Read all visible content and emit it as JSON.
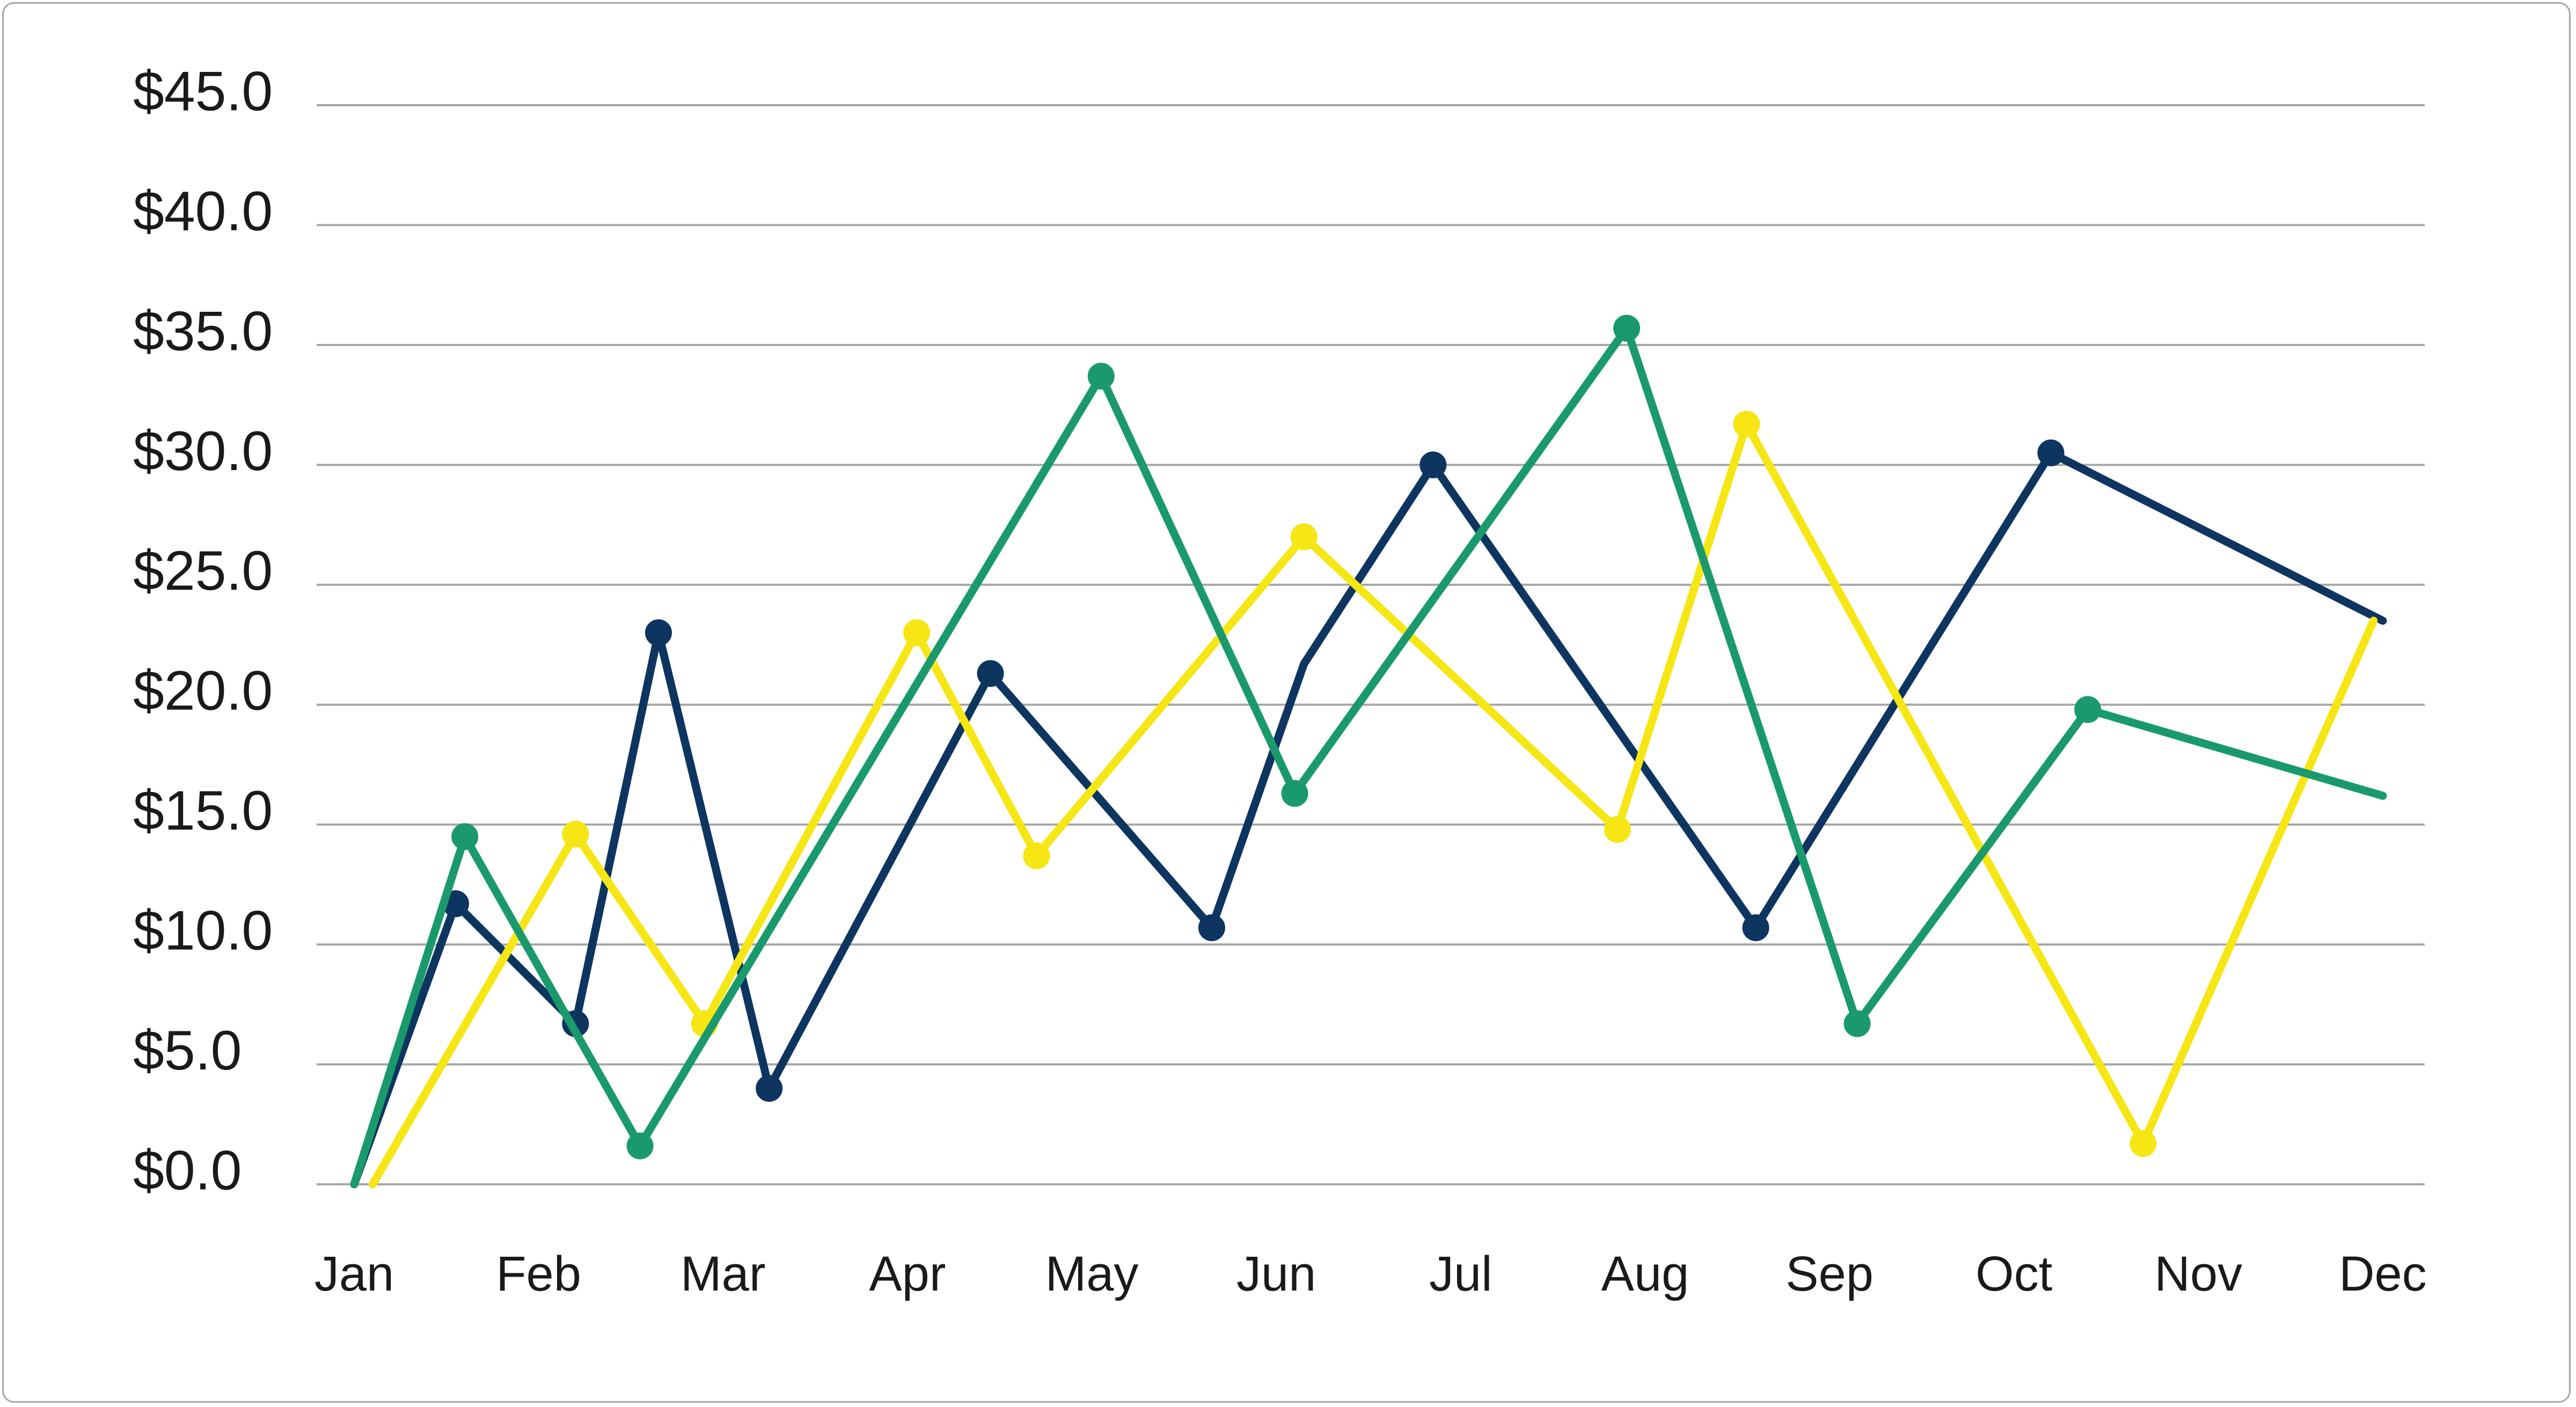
{
  "chart_data": {
    "type": "line",
    "title": "",
    "xlabel": "",
    "ylabel": "",
    "ylim": [
      0,
      45
    ],
    "y_ticks": [
      {
        "value": 0,
        "label": "$0.0"
      },
      {
        "value": 5,
        "label": "$5.0"
      },
      {
        "value": 10,
        "label": "$10.0"
      },
      {
        "value": 15,
        "label": "$15.0"
      },
      {
        "value": 20,
        "label": "$20.0"
      },
      {
        "value": 25,
        "label": "$25.0"
      },
      {
        "value": 30,
        "label": "$30.0"
      },
      {
        "value": 35,
        "label": "$35.0"
      },
      {
        "value": 40,
        "label": "$40.0"
      },
      {
        "value": 45,
        "label": "$45.0"
      }
    ],
    "categories": [
      "Jan",
      "Feb",
      "Mar",
      "Apr",
      "May",
      "Jun",
      "Jul",
      "Aug",
      "Sep",
      "Oct",
      "Nov",
      "Dec"
    ],
    "grid": true,
    "legend": "none",
    "series": [
      {
        "color": "#0d3560",
        "x": [
          0,
          0.55,
          1.2,
          1.65,
          2.25,
          3.45,
          4.65,
          5.15,
          5.85,
          7.6,
          9.2,
          11.0
        ],
        "y": [
          0.0,
          11.7,
          6.7,
          23.0,
          4.0,
          21.3,
          10.7,
          21.7,
          30.0,
          10.7,
          30.5,
          23.5
        ],
        "markers": [
          false,
          true,
          true,
          true,
          true,
          true,
          true,
          false,
          true,
          true,
          true,
          false
        ]
      },
      {
        "color": "#f5e614",
        "x": [
          0.1,
          1.2,
          1.9,
          3.05,
          3.7,
          5.15,
          6.85,
          7.55,
          9.7,
          10.95
        ],
        "y": [
          0.0,
          14.6,
          6.7,
          23.0,
          13.7,
          27.0,
          14.8,
          31.7,
          1.7,
          23.5
        ],
        "markers": [
          false,
          true,
          true,
          true,
          true,
          true,
          true,
          true,
          true,
          false
        ]
      },
      {
        "color": "#1a9a6c",
        "x": [
          0.0,
          0.6,
          1.55,
          4.05,
          5.1,
          6.9,
          8.15,
          9.4,
          11.0
        ],
        "y": [
          0.0,
          14.5,
          1.6,
          33.7,
          16.3,
          35.7,
          6.7,
          19.8,
          16.2
        ],
        "markers": [
          false,
          true,
          true,
          true,
          true,
          true,
          true,
          true,
          false
        ]
      }
    ]
  }
}
